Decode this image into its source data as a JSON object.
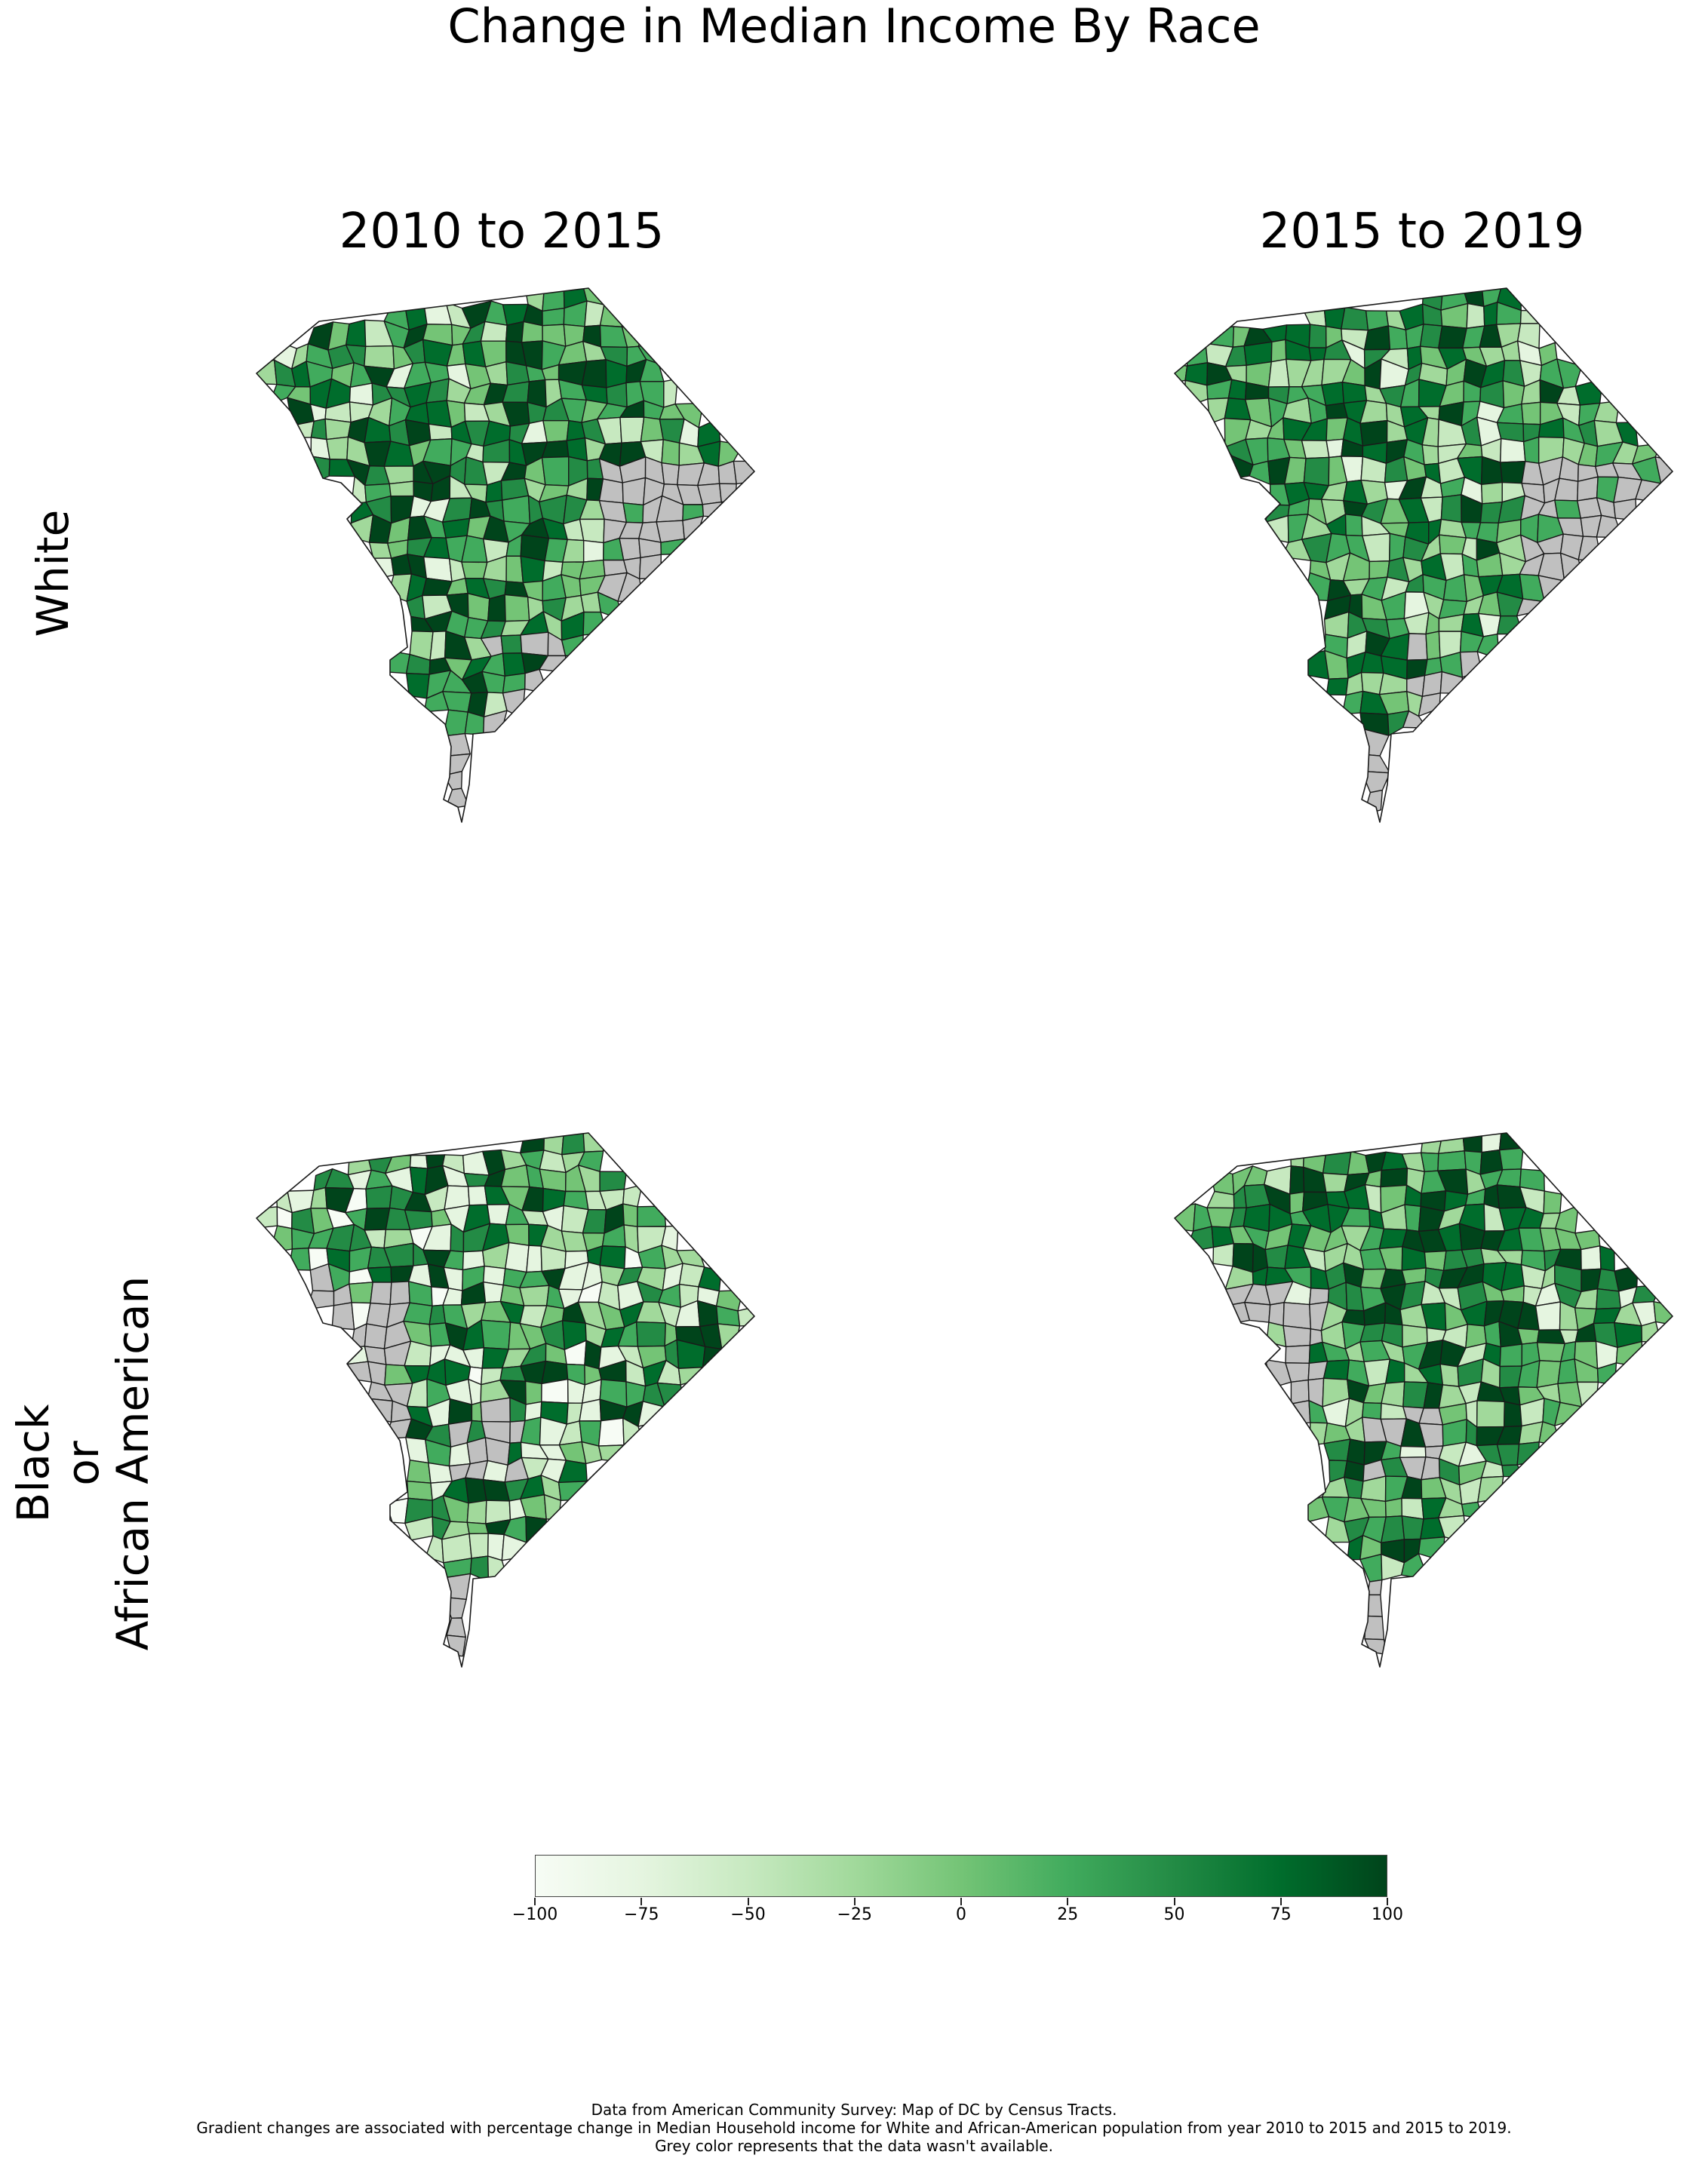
{
  "title": "Change in Median Income By Race",
  "columns": [
    "2010 to 2015",
    "2015 to 2019"
  ],
  "rows": [
    {
      "lines": [
        "White"
      ]
    },
    {
      "lines": [
        "Black",
        "or",
        "African American"
      ]
    }
  ],
  "colorbar": {
    "min": -100,
    "max": 100,
    "ticks": [
      "−100",
      "−75",
      "−50",
      "−25",
      "0",
      "25",
      "50",
      "75",
      "100"
    ],
    "colormap": "Greens",
    "stops": [
      "#f7fcf5",
      "#e5f5e0",
      "#c7e9c0",
      "#a1d99b",
      "#74c476",
      "#41ab5d",
      "#238b45",
      "#006d2c",
      "#00441b"
    ]
  },
  "no_data_color": "#c0c0c0",
  "footer": [
    "Data from American Community Survey: Map of DC by Census Tracts.",
    "Gradient changes are associated with percentage change in Median Household income for White and African-American population from year 2010 to 2015 and 2015 to 2019.",
    "Grey color represents that the data wasn't available."
  ],
  "panels": [
    {
      "row": "White",
      "column": "2010 to 2015"
    },
    {
      "row": "White",
      "column": "2015 to 2019"
    },
    {
      "row": "Black or African American",
      "column": "2010 to 2015"
    },
    {
      "row": "Black or African American",
      "column": "2015 to 2019"
    }
  ]
}
